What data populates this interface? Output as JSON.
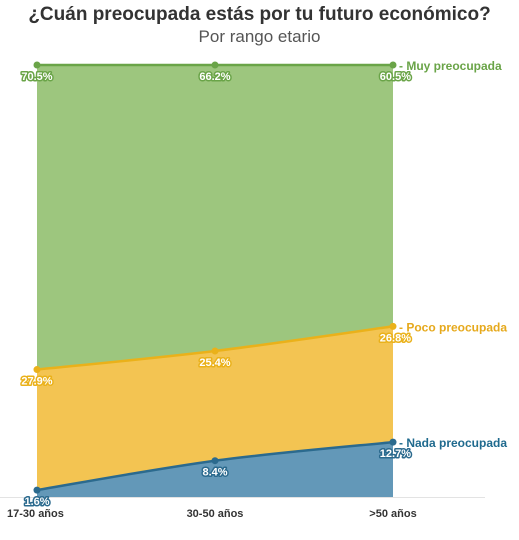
{
  "chart_data": {
    "type": "area",
    "stacked": true,
    "title": "¿Cuán preocupada estás por tu futuro económico?",
    "subtitle": "Por rango etario",
    "categories": [
      "17-30 años",
      "30-50 años",
      ">50 años"
    ],
    "series": [
      {
        "name": "Nada preocupada",
        "values": [
          1.6,
          8.4,
          12.7
        ],
        "labels": [
          "1.6%",
          "8.4%",
          "12.7%"
        ],
        "fill": "#6398b8",
        "line": "#2b6a8e",
        "label_color": "#1f6a8e"
      },
      {
        "name": "Poco preocupada",
        "values": [
          27.9,
          25.4,
          26.8
        ],
        "labels": [
          "27.9%",
          "25.4%",
          "26.8%"
        ],
        "fill": "#f3c452",
        "line": "#eab11a",
        "label_color": "#e6a91c"
      },
      {
        "name": "Muy preocupada",
        "values": [
          70.5,
          66.2,
          60.5
        ],
        "labels": [
          "70.5%",
          "66.2%",
          "60.5%"
        ],
        "fill": "#9dc67e",
        "line": "#6aa448",
        "label_color": "#6aa448"
      }
    ],
    "ylim": [
      0,
      100
    ],
    "legend": "right, at series ends"
  }
}
